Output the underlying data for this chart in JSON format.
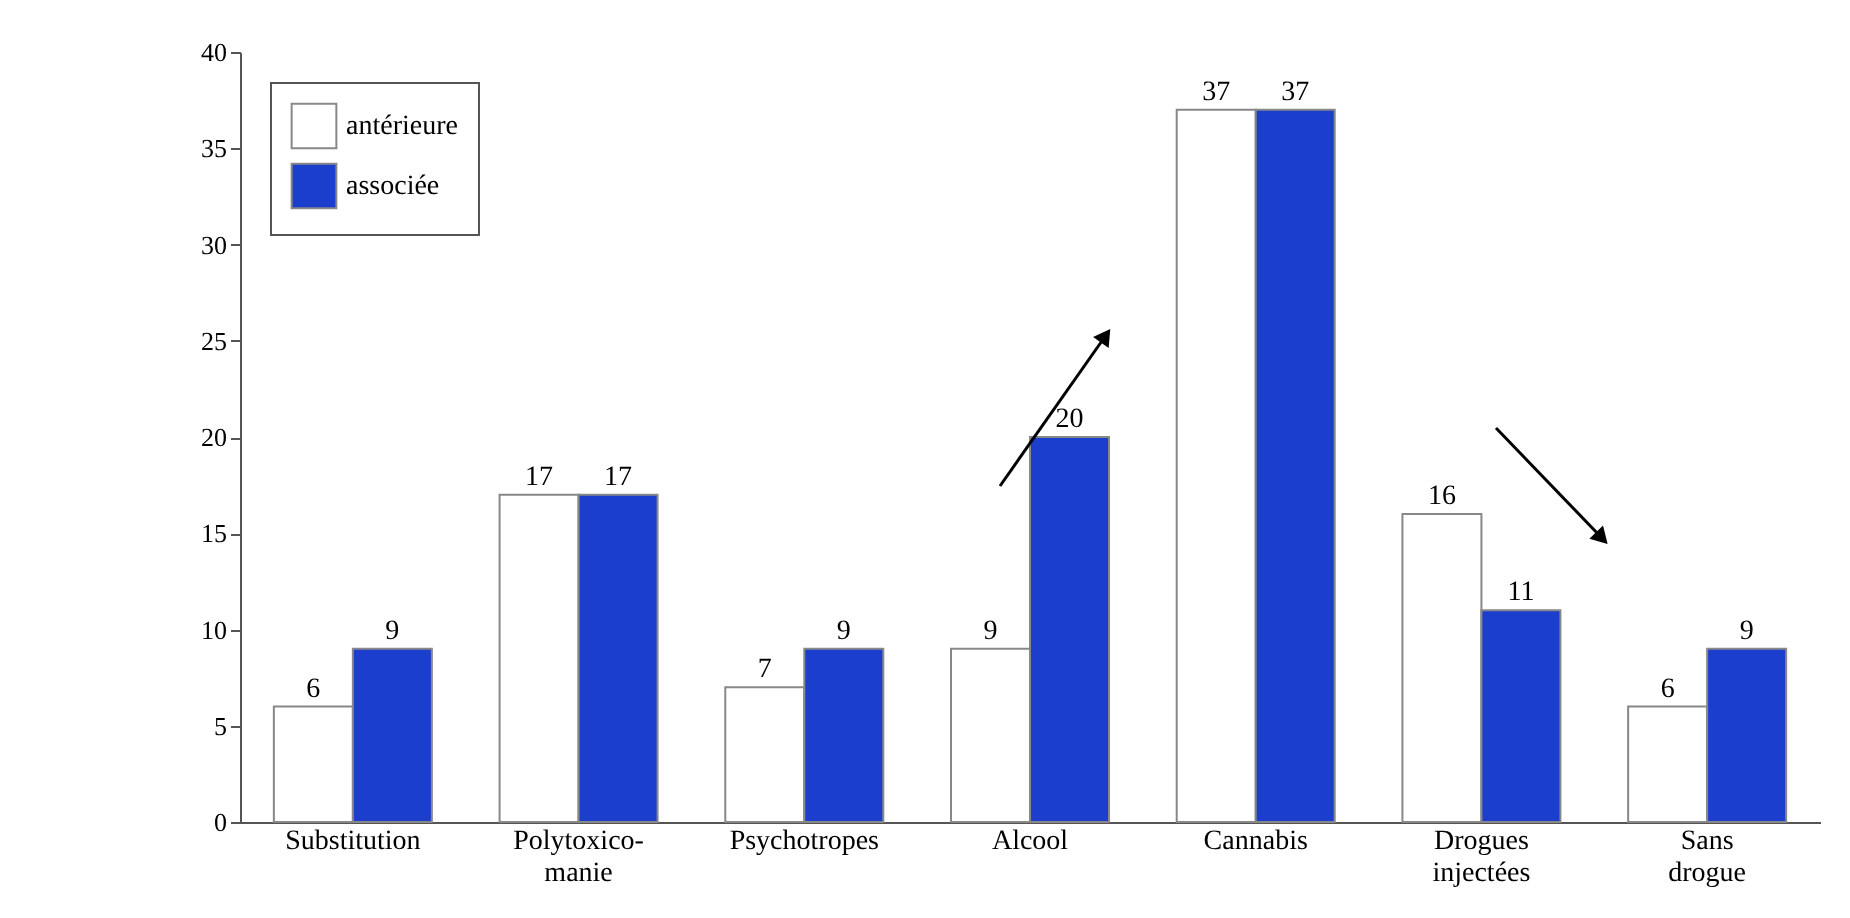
{
  "chart_data": {
    "type": "bar",
    "categories": [
      "Substitution",
      "Polytoxico-manie",
      "Psychotropes",
      "Alcool",
      "Cannabis",
      "Drogues injectées",
      "Sans drogue"
    ],
    "series": [
      {
        "name": "antérieure",
        "color": "#ffffff",
        "values": [
          6,
          17,
          7,
          9,
          37,
          16,
          6
        ]
      },
      {
        "name": "associée",
        "color": "#1b3fcc",
        "values": [
          9,
          17,
          9,
          20,
          37,
          11,
          9
        ]
      }
    ],
    "ylim": [
      0,
      40
    ],
    "yticks": [
      0,
      5,
      10,
      15,
      20,
      25,
      30,
      35,
      40
    ],
    "data_labels": true,
    "grid": false,
    "legend": "top left"
  }
}
